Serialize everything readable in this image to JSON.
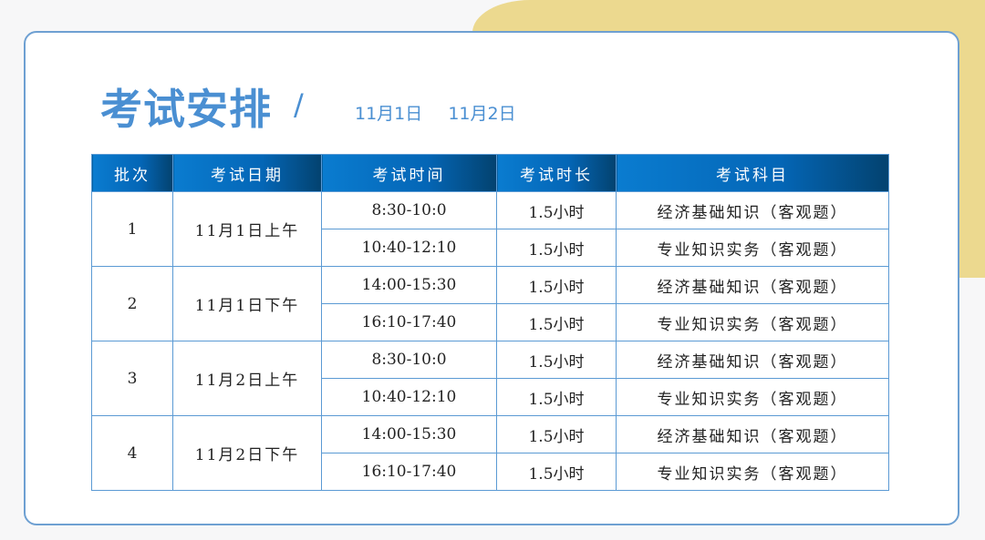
{
  "colors": {
    "accent": "#4a8fd2",
    "header_bg": "#0466b6",
    "decor": "#ecd98f",
    "border": "#6ea0d2"
  },
  "title": "考试安排",
  "separator": "/",
  "dates": [
    "11月1日",
    "11月2日"
  ],
  "table": {
    "headers": [
      "批次",
      "考试日期",
      "考试时间",
      "考试时长",
      "考试科目"
    ],
    "groups": [
      {
        "batch": "1",
        "date": "11月1日上午",
        "rows": [
          {
            "time": "8:30-10:0",
            "duration": "1.5小时",
            "subject": "经济基础知识（客观题）"
          },
          {
            "time": "10:40-12:10",
            "duration": "1.5小时",
            "subject": "专业知识实务（客观题）"
          }
        ]
      },
      {
        "batch": "2",
        "date": "11月1日下午",
        "rows": [
          {
            "time": "14:00-15:30",
            "duration": "1.5小时",
            "subject": "经济基础知识（客观题）"
          },
          {
            "time": "16:10-17:40",
            "duration": "1.5小时",
            "subject": "专业知识实务（客观题）"
          }
        ]
      },
      {
        "batch": "3",
        "date": "11月2日上午",
        "rows": [
          {
            "time": "8:30-10:0",
            "duration": "1.5小时",
            "subject": "经济基础知识（客观题）"
          },
          {
            "time": "10:40-12:10",
            "duration": "1.5小时",
            "subject": "专业知识实务（客观题）"
          }
        ]
      },
      {
        "batch": "4",
        "date": "11月2日下午",
        "rows": [
          {
            "time": "14:00-15:30",
            "duration": "1.5小时",
            "subject": "经济基础知识（客观题）"
          },
          {
            "time": "16:10-17:40",
            "duration": "1.5小时",
            "subject": "专业知识实务（客观题）"
          }
        ]
      }
    ]
  }
}
